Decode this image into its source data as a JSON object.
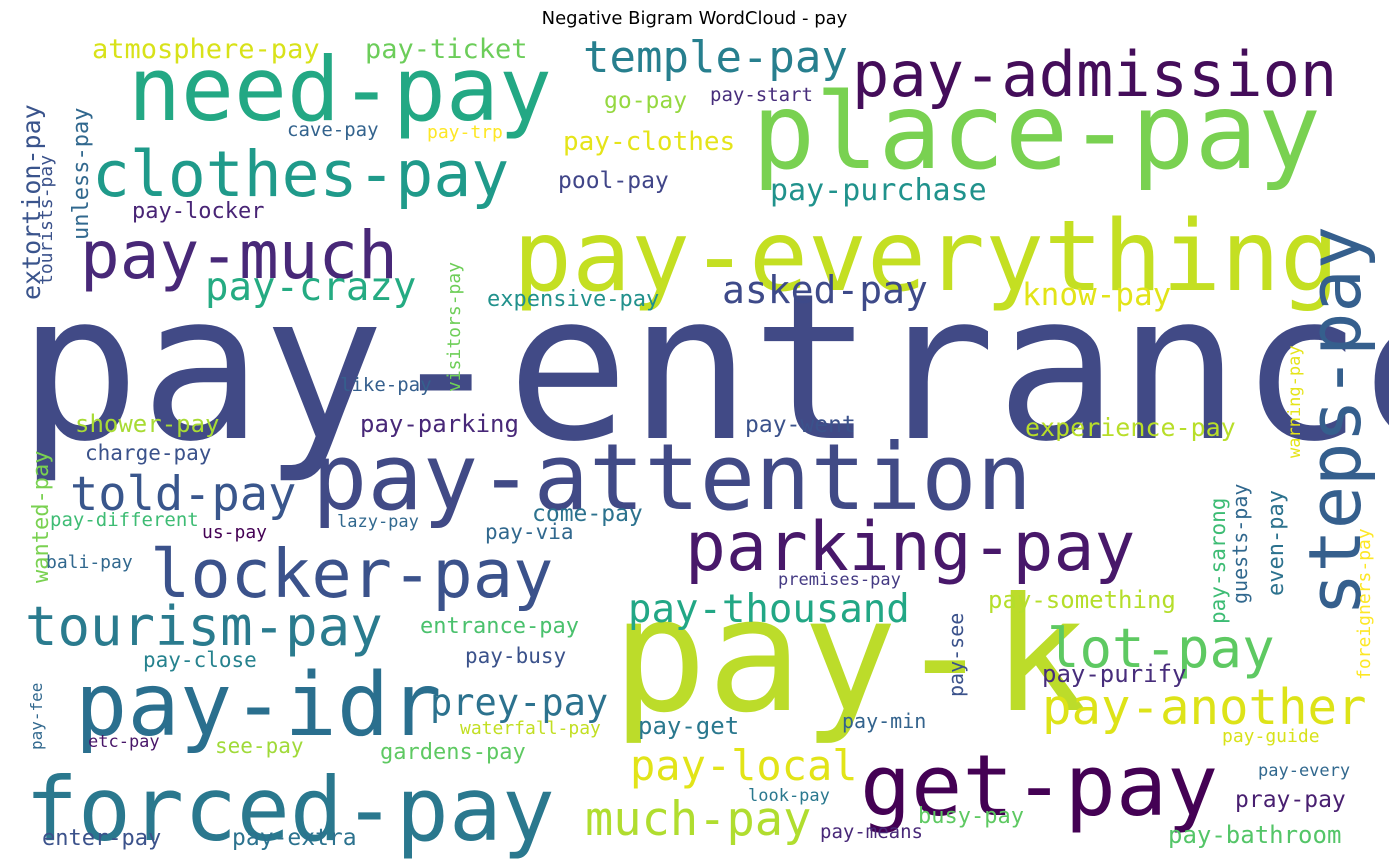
{
  "chart_data": {
    "type": "wordcloud",
    "title": "Negative Bigram WordCloud - pay",
    "words": [
      {
        "text": "pay-entrance",
        "color": "#414a86"
      },
      {
        "text": "pay-k",
        "color": "#bcdc2a"
      },
      {
        "text": "place-pay",
        "color": "#79d151"
      },
      {
        "text": "pay-everything",
        "color": "#c4df22"
      },
      {
        "text": "pay-attention",
        "color": "#414a86"
      },
      {
        "text": "need-pay",
        "color": "#23a884"
      },
      {
        "text": "pay-admission",
        "color": "#440d5a"
      },
      {
        "text": "forced-pay",
        "color": "#2a788e"
      },
      {
        "text": "get-pay",
        "color": "#440154"
      },
      {
        "text": "pay-idr",
        "color": "#2a6f8e"
      },
      {
        "text": "steps-pay",
        "color": "#355f8d"
      },
      {
        "text": "parking-pay",
        "color": "#48186a"
      },
      {
        "text": "locker-pay",
        "color": "#3b528b"
      },
      {
        "text": "clothes-pay",
        "color": "#1f9a8a"
      },
      {
        "text": "pay-much",
        "color": "#482878"
      },
      {
        "text": "tourism-pay",
        "color": "#2a7b8e"
      },
      {
        "text": "told-pay",
        "color": "#39568c"
      },
      {
        "text": "temple-pay",
        "color": "#277f8e"
      },
      {
        "text": "lot-pay",
        "color": "#5ec962"
      },
      {
        "text": "pay-another",
        "color": "#dde318"
      },
      {
        "text": "much-pay",
        "color": "#b0dd2f"
      },
      {
        "text": "pay-thousand",
        "color": "#22a785"
      },
      {
        "text": "pay-local",
        "color": "#e2e418"
      },
      {
        "text": "asked-pay",
        "color": "#3e4a89"
      },
      {
        "text": "pay-crazy",
        "color": "#25ab82"
      },
      {
        "text": "prey-pay",
        "color": "#2c728e"
      },
      {
        "text": "know-pay",
        "color": "#e2e418"
      },
      {
        "text": "pay-purchase",
        "color": "#20928c"
      },
      {
        "text": "atmosphere-pay",
        "color": "#d8e219"
      },
      {
        "text": "pay-ticket",
        "color": "#6ccd5a"
      },
      {
        "text": "pay-clothes",
        "color": "#e5e419"
      },
      {
        "text": "go-pay",
        "color": "#95d840"
      },
      {
        "text": "pay-start",
        "color": "#472d7b"
      },
      {
        "text": "cave-pay",
        "color": "#33638d"
      },
      {
        "text": "pay-trp",
        "color": "#fde725"
      },
      {
        "text": "pool-pay",
        "color": "#404588"
      },
      {
        "text": "pay-locker",
        "color": "#482475"
      },
      {
        "text": "expensive-pay",
        "color": "#21918c"
      },
      {
        "text": "extortion-pay",
        "color": "#3a548c"
      },
      {
        "text": "unless-pay",
        "color": "#31688e"
      },
      {
        "text": "tourists-pay",
        "color": "#3b528b"
      },
      {
        "text": "visitors-pay",
        "color": "#6ece58"
      },
      {
        "text": "like-pay",
        "color": "#355f8d"
      },
      {
        "text": "shower-pay",
        "color": "#a8db34"
      },
      {
        "text": "pay-parking",
        "color": "#482878"
      },
      {
        "text": "pay-went",
        "color": "#3b528b"
      },
      {
        "text": "experience-pay",
        "color": "#b8de29"
      },
      {
        "text": "charge-pay",
        "color": "#3b528b"
      },
      {
        "text": "warning-pay",
        "color": "#e5e419"
      },
      {
        "text": "wanted-pay",
        "color": "#7ad151"
      },
      {
        "text": "pay-different",
        "color": "#3ebc74"
      },
      {
        "text": "us-pay",
        "color": "#440154"
      },
      {
        "text": "lazy-pay",
        "color": "#31688e"
      },
      {
        "text": "come-pay",
        "color": "#2c728e"
      },
      {
        "text": "pay-via",
        "color": "#31688e"
      },
      {
        "text": "pay-sarong",
        "color": "#3dbc74"
      },
      {
        "text": "guests-pay",
        "color": "#31688e"
      },
      {
        "text": "even-pay",
        "color": "#2c728e"
      },
      {
        "text": "foreigners-pay",
        "color": "#fde725"
      },
      {
        "text": "bali-pay",
        "color": "#31688e"
      },
      {
        "text": "premises-pay",
        "color": "#443a83"
      },
      {
        "text": "pay-something",
        "color": "#b5de2b"
      },
      {
        "text": "entrance-pay",
        "color": "#4ac16d"
      },
      {
        "text": "pay-see",
        "color": "#3b528b"
      },
      {
        "text": "pay-close",
        "color": "#26828e"
      },
      {
        "text": "pay-busy",
        "color": "#3b528b"
      },
      {
        "text": "pay-purify",
        "color": "#472d7b"
      },
      {
        "text": "pay-fee",
        "color": "#31688e"
      },
      {
        "text": "waterfall-pay",
        "color": "#c2df23"
      },
      {
        "text": "pay-get",
        "color": "#2a788e"
      },
      {
        "text": "pay-min",
        "color": "#33638d"
      },
      {
        "text": "etc-pay",
        "color": "#481668"
      },
      {
        "text": "see-pay",
        "color": "#a0da39"
      },
      {
        "text": "gardens-pay",
        "color": "#5ec962"
      },
      {
        "text": "pay-guide",
        "color": "#d8e219"
      },
      {
        "text": "pay-every",
        "color": "#31688e"
      },
      {
        "text": "look-pay",
        "color": "#2a788e"
      },
      {
        "text": "busy-pay",
        "color": "#5ec962"
      },
      {
        "text": "pray-pay",
        "color": "#481f70"
      },
      {
        "text": "enter-pay",
        "color": "#3b528b"
      },
      {
        "text": "pay-extra",
        "color": "#2c728e"
      },
      {
        "text": "pay-means",
        "color": "#482878"
      },
      {
        "text": "pay-bathroom",
        "color": "#54c568"
      }
    ]
  }
}
